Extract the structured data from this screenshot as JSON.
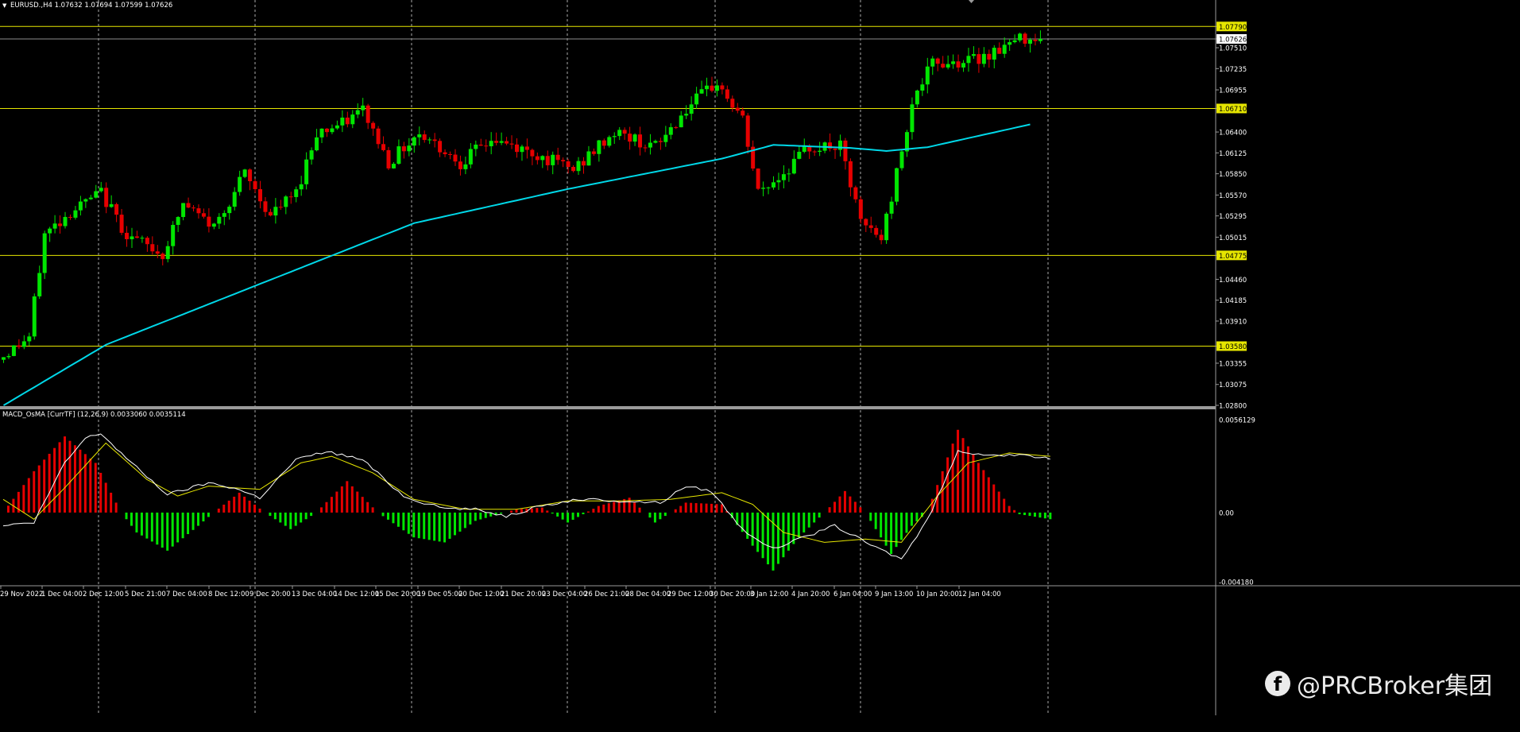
{
  "header": {
    "symbol_line": "EURUSD.,H4 1.07632 1.07694 1.07599 1.07626"
  },
  "indicator_header": {
    "label": "MACD_OsMA [CurrTF] (12,26,9) 0.0033060 0.0035114"
  },
  "watermark": {
    "icon": "facebook-icon",
    "text": "@PRCBroker集团"
  },
  "colors": {
    "background": "#000000",
    "bull": "#00e600",
    "bear": "#e60000",
    "moving_average": "#00d8e8",
    "level_line": "#e6e600",
    "grid": "#c8c8c8",
    "macd_line": "#ffffff",
    "signal_line": "#e6e600"
  },
  "chart_data": [
    {
      "type": "candlestick",
      "symbol": "EURUSD.",
      "timeframe": "H4",
      "ylim": [
        1.028,
        1.0795
      ],
      "price_ticks": [
        "1.07790",
        "1.07626",
        "1.07510",
        "1.07235",
        "1.06955",
        "1.06710",
        "1.06400",
        "1.06125",
        "1.05850",
        "1.05570",
        "1.05295",
        "1.05015",
        "1.04775",
        "1.04460",
        "1.04185",
        "1.03910",
        "1.03580",
        "1.03355",
        "1.03075",
        "1.02800"
      ],
      "highlighted_ticks": [
        "1.07790",
        "1.06710",
        "1.04775",
        "1.03580"
      ],
      "current_price_tick": "1.07626",
      "time_labels": [
        "29 Nov 2022",
        "1 Dec 04:00",
        "2 Dec 12:00",
        "5 Dec 21:00",
        "7 Dec 04:00",
        "8 Dec 12:00",
        "9 Dec 20:00",
        "13 Dec 04:00",
        "14 Dec 12:00",
        "15 Dec 20:00",
        "19 Dec 05:00",
        "20 Dec 12:00",
        "21 Dec 20:00",
        "23 Dec 04:00",
        "26 Dec 21:00",
        "28 Dec 04:00",
        "29 Dec 12:00",
        "30 Dec 20:00",
        "3 Jan 12:00",
        "4 Jan 20:00",
        "6 Jan 04:00",
        "9 Jan 13:00",
        "10 Jan 20:00",
        "12 Jan 04:00"
      ],
      "horizontal_levels": [
        1.0779,
        1.0671,
        1.04775,
        1.0358
      ],
      "current_price": 1.07626,
      "close_path": [
        {
          "t": 0,
          "p": 1.034
        },
        {
          "t": 6,
          "p": 1.037
        },
        {
          "t": 9,
          "p": 1.0505
        },
        {
          "t": 14,
          "p": 1.0535
        },
        {
          "t": 20,
          "p": 1.056
        },
        {
          "t": 25,
          "p": 1.0505
        },
        {
          "t": 32,
          "p": 1.0478
        },
        {
          "t": 36,
          "p": 1.0545
        },
        {
          "t": 42,
          "p": 1.0515
        },
        {
          "t": 48,
          "p": 1.0585
        },
        {
          "t": 53,
          "p": 1.053
        },
        {
          "t": 58,
          "p": 1.056
        },
        {
          "t": 62,
          "p": 1.064
        },
        {
          "t": 67,
          "p": 1.065
        },
        {
          "t": 71,
          "p": 1.067
        },
        {
          "t": 76,
          "p": 1.06
        },
        {
          "t": 82,
          "p": 1.064
        },
        {
          "t": 90,
          "p": 1.06
        },
        {
          "t": 96,
          "p": 1.063
        },
        {
          "t": 105,
          "p": 1.061
        },
        {
          "t": 112,
          "p": 1.059
        },
        {
          "t": 120,
          "p": 1.064
        },
        {
          "t": 128,
          "p": 1.062
        },
        {
          "t": 134,
          "p": 1.067
        },
        {
          "t": 140,
          "p": 1.0705
        },
        {
          "t": 145,
          "p": 1.0655
        },
        {
          "t": 148,
          "p": 1.056
        },
        {
          "t": 152,
          "p": 1.058
        },
        {
          "t": 158,
          "p": 1.062
        },
        {
          "t": 164,
          "p": 1.062
        },
        {
          "t": 168,
          "p": 1.052
        },
        {
          "t": 172,
          "p": 1.05
        },
        {
          "t": 174,
          "p": 1.0555
        },
        {
          "t": 178,
          "p": 1.068
        },
        {
          "t": 182,
          "p": 1.073
        },
        {
          "t": 190,
          "p": 1.0735
        },
        {
          "t": 200,
          "p": 1.0765
        }
      ],
      "moving_average": [
        {
          "t": 0,
          "p": 1.028
        },
        {
          "t": 20,
          "p": 1.036
        },
        {
          "t": 50,
          "p": 1.044
        },
        {
          "t": 80,
          "p": 1.052
        },
        {
          "t": 110,
          "p": 1.0565
        },
        {
          "t": 140,
          "p": 1.0605
        },
        {
          "t": 150,
          "p": 1.0623
        },
        {
          "t": 165,
          "p": 1.0619
        },
        {
          "t": 172,
          "p": 1.0615
        },
        {
          "t": 180,
          "p": 1.062
        },
        {
          "t": 200,
          "p": 1.065
        }
      ]
    },
    {
      "type": "bar",
      "name": "MACD_OsMA [CurrTF] (12,26,9)",
      "ylim": [
        -0.00418,
        0.005613
      ],
      "ticks": [
        "0.0056129",
        "0.00",
        "-0.004180"
      ],
      "histogram_path": [
        {
          "t": 0,
          "v": 0
        },
        {
          "t": 6,
          "v": 0.0025
        },
        {
          "t": 12,
          "v": 0.0046
        },
        {
          "t": 18,
          "v": 0.003
        },
        {
          "t": 23,
          "v": 0
        },
        {
          "t": 26,
          "v": -0.0012
        },
        {
          "t": 32,
          "v": -0.0023
        },
        {
          "t": 38,
          "v": -0.0008
        },
        {
          "t": 41,
          "v": 0
        },
        {
          "t": 46,
          "v": 0.0012
        },
        {
          "t": 51,
          "v": 0
        },
        {
          "t": 56,
          "v": -0.001
        },
        {
          "t": 61,
          "v": 0
        },
        {
          "t": 67,
          "v": 0.0019
        },
        {
          "t": 73,
          "v": 0
        },
        {
          "t": 80,
          "v": -0.0015
        },
        {
          "t": 86,
          "v": -0.0018
        },
        {
          "t": 92,
          "v": -0.0005
        },
        {
          "t": 100,
          "v": 0.0002
        },
        {
          "t": 105,
          "v": 0.0003
        },
        {
          "t": 110,
          "v": -0.0006
        },
        {
          "t": 116,
          "v": 0.0004
        },
        {
          "t": 122,
          "v": 0.0009
        },
        {
          "t": 127,
          "v": -0.0006
        },
        {
          "t": 133,
          "v": 0.0006
        },
        {
          "t": 140,
          "v": 0.0005
        },
        {
          "t": 146,
          "v": -0.002
        },
        {
          "t": 150,
          "v": -0.0035
        },
        {
          "t": 155,
          "v": -0.0015
        },
        {
          "t": 160,
          "v": 0
        },
        {
          "t": 164,
          "v": 0.0013
        },
        {
          "t": 168,
          "v": 0
        },
        {
          "t": 173,
          "v": -0.0025
        },
        {
          "t": 177,
          "v": -0.0008
        },
        {
          "t": 180,
          "v": 0
        },
        {
          "t": 186,
          "v": 0.005
        },
        {
          "t": 190,
          "v": 0.003
        },
        {
          "t": 196,
          "v": 0.0004
        },
        {
          "t": 198,
          "v": -0.0001
        },
        {
          "t": 204,
          "v": -0.0004
        }
      ],
      "macd_line": [
        {
          "t": 0,
          "v": -0.0008
        },
        {
          "t": 6,
          "v": -0.0006
        },
        {
          "t": 12,
          "v": 0.003
        },
        {
          "t": 16,
          "v": 0.0045
        },
        {
          "t": 19,
          "v": 0.0048
        },
        {
          "t": 25,
          "v": 0.003
        },
        {
          "t": 32,
          "v": 0.0011
        },
        {
          "t": 40,
          "v": 0.0018
        },
        {
          "t": 45,
          "v": 0.0015
        },
        {
          "t": 50,
          "v": 0.0009
        },
        {
          "t": 57,
          "v": 0.0032
        },
        {
          "t": 63,
          "v": 0.0037
        },
        {
          "t": 70,
          "v": 0.0032
        },
        {
          "t": 78,
          "v": 0.001
        },
        {
          "t": 85,
          "v": 0.0003
        },
        {
          "t": 92,
          "v": 0.0002
        },
        {
          "t": 98,
          "v": -0.0002
        },
        {
          "t": 105,
          "v": 0.0004
        },
        {
          "t": 112,
          "v": 0.0008
        },
        {
          "t": 120,
          "v": 0.0007
        },
        {
          "t": 128,
          "v": 0.0006
        },
        {
          "t": 133,
          "v": 0.0016
        },
        {
          "t": 138,
          "v": 0.0013
        },
        {
          "t": 144,
          "v": -0.001
        },
        {
          "t": 150,
          "v": -0.0022
        },
        {
          "t": 156,
          "v": -0.0015
        },
        {
          "t": 162,
          "v": -0.0008
        },
        {
          "t": 170,
          "v": -0.0021
        },
        {
          "t": 175,
          "v": -0.0028
        },
        {
          "t": 180,
          "v": -0.0005
        },
        {
          "t": 186,
          "v": 0.0037
        },
        {
          "t": 192,
          "v": 0.0035
        },
        {
          "t": 200,
          "v": 0.0034
        },
        {
          "t": 204,
          "v": 0.0033
        }
      ],
      "signal_line": [
        {
          "t": 0,
          "v": 0.0008
        },
        {
          "t": 6,
          "v": -0.0004
        },
        {
          "t": 12,
          "v": 0.0015
        },
        {
          "t": 20,
          "v": 0.0042
        },
        {
          "t": 28,
          "v": 0.002
        },
        {
          "t": 34,
          "v": 0.001
        },
        {
          "t": 40,
          "v": 0.0016
        },
        {
          "t": 50,
          "v": 0.0014
        },
        {
          "t": 58,
          "v": 0.003
        },
        {
          "t": 64,
          "v": 0.0034
        },
        {
          "t": 72,
          "v": 0.0024
        },
        {
          "t": 80,
          "v": 0.0008
        },
        {
          "t": 90,
          "v": 0.0002
        },
        {
          "t": 100,
          "v": 0.0002
        },
        {
          "t": 110,
          "v": 0.0007
        },
        {
          "t": 120,
          "v": 0.0007
        },
        {
          "t": 130,
          "v": 0.0008
        },
        {
          "t": 140,
          "v": 0.0012
        },
        {
          "t": 146,
          "v": 0.0005
        },
        {
          "t": 152,
          "v": -0.0012
        },
        {
          "t": 160,
          "v": -0.0018
        },
        {
          "t": 168,
          "v": -0.0016
        },
        {
          "t": 175,
          "v": -0.0018
        },
        {
          "t": 182,
          "v": 0.001
        },
        {
          "t": 188,
          "v": 0.003
        },
        {
          "t": 196,
          "v": 0.0036
        },
        {
          "t": 204,
          "v": 0.0034
        }
      ]
    }
  ]
}
